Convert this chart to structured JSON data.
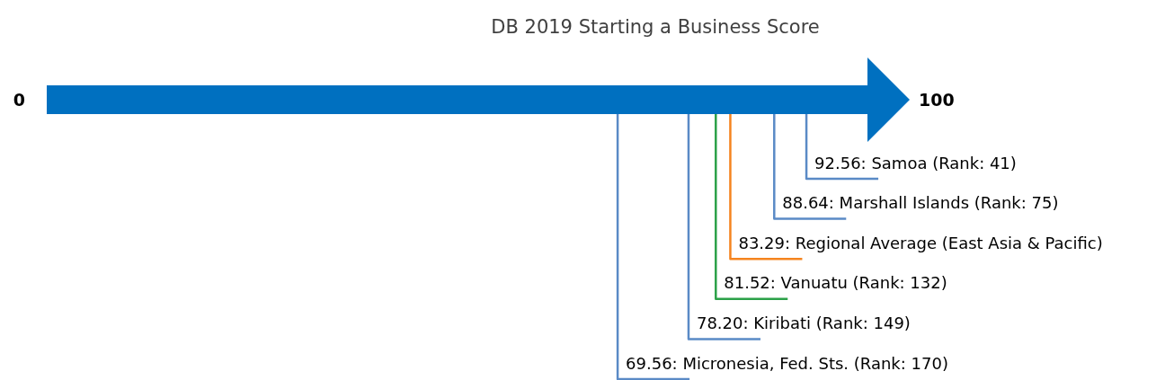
{
  "chart_data": {
    "type": "other",
    "title": "DB 2019 Starting a Business Score",
    "categories": [
      "Samoa (Rank: 41)",
      "Marshall Islands (Rank: 75)",
      "Regional Average (East Asia & Pacific)",
      "Vanuatu (Rank: 132)",
      "Kiribati (Rank: 149)",
      "Micronesia, Fed. Sts. (Rank: 170)"
    ],
    "values": [
      92.56,
      88.64,
      83.29,
      81.52,
      78.2,
      69.56
    ],
    "value_labels": [
      "92.56:",
      "88.64:",
      "83.29:",
      "81.52:",
      "78.20:",
      "69.56:"
    ],
    "colors": [
      "#5a8ac6",
      "#5a8ac6",
      "#f5841f",
      "#2ca148",
      "#5a8ac6",
      "#5a8ac6"
    ],
    "annotations": [
      "0",
      "100"
    ]
  }
}
